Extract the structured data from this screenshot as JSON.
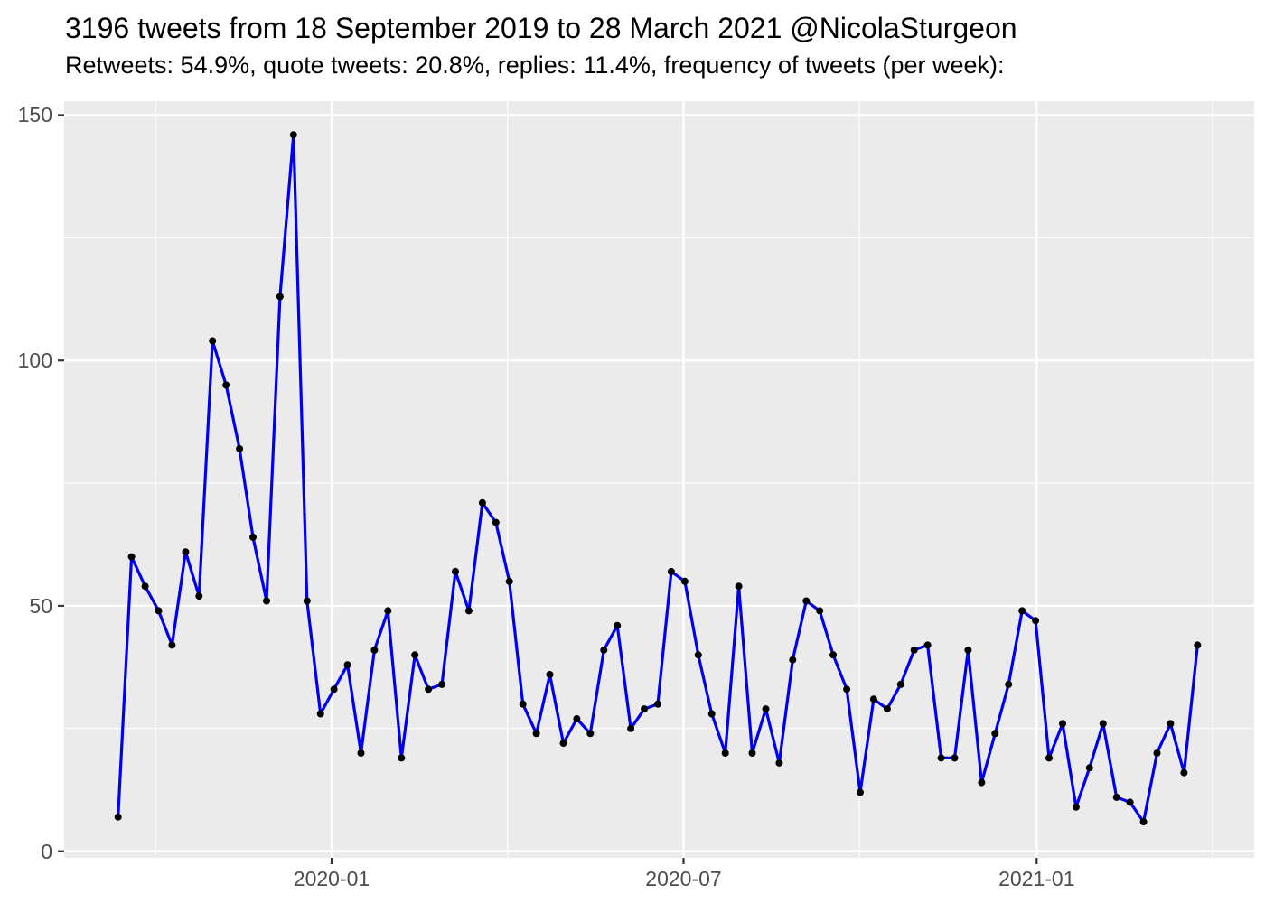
{
  "chart_data": {
    "type": "line",
    "title": "3196 tweets from 18 September 2019 to 28 March 2021 @NicolaSturgeon",
    "subtitle": "Retweets: 54.9%, quote tweets: 20.8%, replies: 11.4%, frequency of tweets (per week):",
    "xlabel": "",
    "ylabel": "",
    "total_tweets": 3196,
    "x": [
      "2019-09-15",
      "2019-09-22",
      "2019-09-29",
      "2019-10-06",
      "2019-10-13",
      "2019-10-20",
      "2019-10-27",
      "2019-11-03",
      "2019-11-10",
      "2019-11-17",
      "2019-11-24",
      "2019-12-01",
      "2019-12-08",
      "2019-12-15",
      "2019-12-22",
      "2019-12-29",
      "2020-01-05",
      "2020-01-12",
      "2020-01-19",
      "2020-01-26",
      "2020-02-02",
      "2020-02-09",
      "2020-02-16",
      "2020-02-23",
      "2020-03-01",
      "2020-03-08",
      "2020-03-15",
      "2020-03-22",
      "2020-03-29",
      "2020-04-05",
      "2020-04-12",
      "2020-04-19",
      "2020-04-26",
      "2020-05-03",
      "2020-05-10",
      "2020-05-17",
      "2020-05-24",
      "2020-05-31",
      "2020-06-07",
      "2020-06-14",
      "2020-06-21",
      "2020-06-28",
      "2020-07-05",
      "2020-07-12",
      "2020-07-19",
      "2020-07-26",
      "2020-08-02",
      "2020-08-09",
      "2020-08-16",
      "2020-08-23",
      "2020-08-30",
      "2020-09-06",
      "2020-09-13",
      "2020-09-20",
      "2020-09-27",
      "2020-10-04",
      "2020-10-11",
      "2020-10-18",
      "2020-10-25",
      "2020-11-01",
      "2020-11-08",
      "2020-11-15",
      "2020-11-22",
      "2020-11-29",
      "2020-12-06",
      "2020-12-13",
      "2020-12-20",
      "2020-12-27",
      "2021-01-03",
      "2021-01-10",
      "2021-01-17",
      "2021-01-24",
      "2021-01-31",
      "2021-02-07",
      "2021-02-14",
      "2021-02-21",
      "2021-02-28",
      "2021-03-07",
      "2021-03-14",
      "2021-03-21",
      "2021-03-28"
    ],
    "y": [
      7,
      60,
      54,
      49,
      42,
      61,
      52,
      104,
      95,
      82,
      64,
      51,
      113,
      146,
      51,
      28,
      33,
      38,
      20,
      41,
      49,
      19,
      40,
      33,
      34,
      57,
      49,
      71,
      67,
      55,
      30,
      24,
      36,
      22,
      27,
      24,
      41,
      46,
      25,
      29,
      30,
      57,
      55,
      40,
      28,
      20,
      54,
      20,
      29,
      18,
      39,
      51,
      49,
      40,
      33,
      12,
      31,
      29,
      34,
      41,
      42,
      19,
      19,
      41,
      14,
      24,
      34,
      49,
      47,
      19,
      26,
      9,
      17,
      26,
      11,
      10,
      6,
      20,
      26,
      16,
      42
    ],
    "y_ticks": [
      0,
      50,
      100,
      150
    ],
    "y_tick_labels": [
      "0",
      "50",
      "100",
      "150"
    ],
    "y_minor_ticks": [
      25,
      75,
      125
    ],
    "x_tick_labels": [
      "2020-01",
      "2020-07",
      "2021-01"
    ],
    "ylim": [
      -1.4,
      152.9
    ],
    "grid": true,
    "legend": "none",
    "colors": {
      "line": "#0000EE",
      "point": "#000000",
      "panel_bg": "#EBEBEB",
      "grid": "#FFFFFF",
      "tick_text": "#4D4D4D",
      "tick_mark": "#333333",
      "title_text": "#000000",
      "page_bg": "#FFFFFF"
    }
  }
}
